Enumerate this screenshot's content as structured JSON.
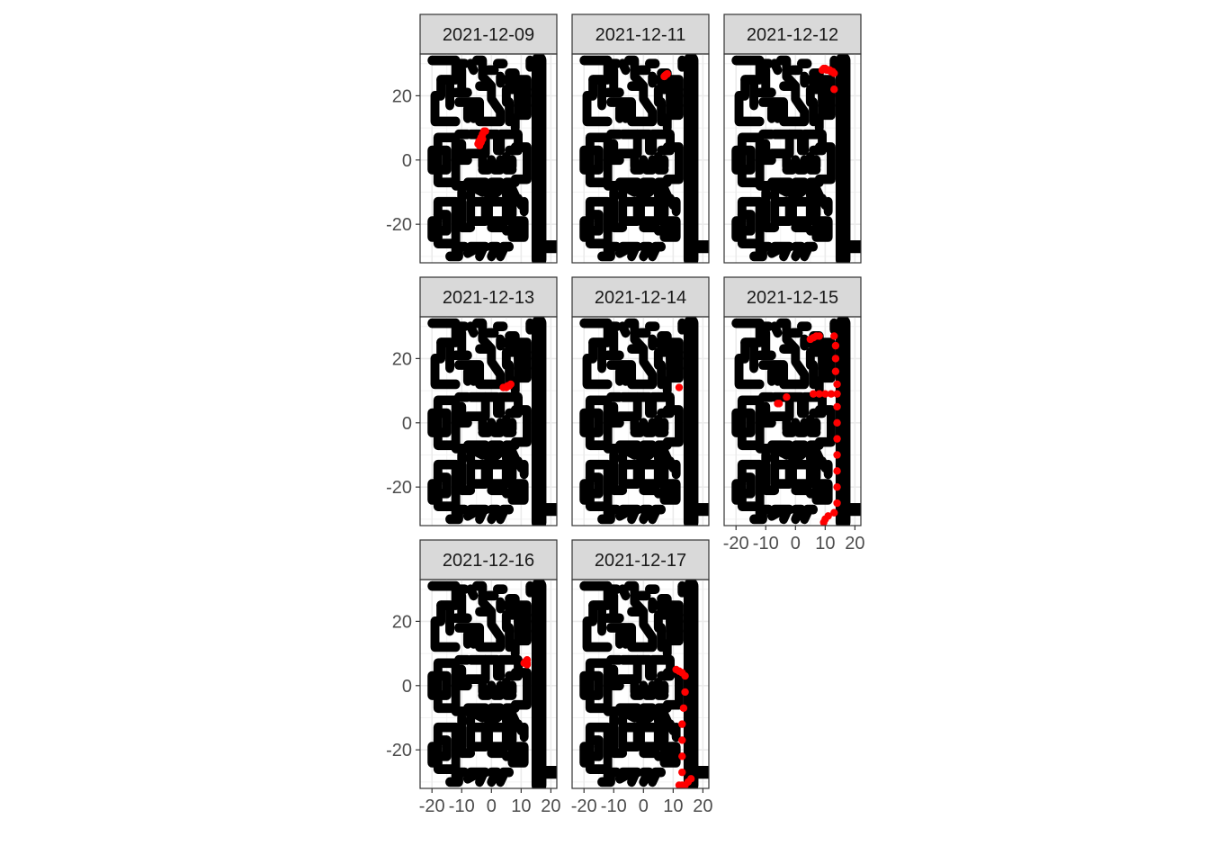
{
  "chart_data": {
    "type": "scatter",
    "title": "",
    "xlabel": "",
    "ylabel": "",
    "xlim": [
      -24,
      22
    ],
    "ylim": [
      -32,
      33
    ],
    "x_ticks": [
      -20,
      -10,
      0,
      10,
      20
    ],
    "x_tick_labels": [
      "-20",
      "-10",
      "0",
      "10",
      "20"
    ],
    "y_ticks": [
      -20,
      0,
      20
    ],
    "y_tick_labels": [
      "-20",
      "0",
      "20"
    ],
    "grid": true,
    "facet_layout": {
      "ncol": 3,
      "nrow": 3
    },
    "series_color": "#ff0000",
    "floorplan_color": "#000000",
    "facets": [
      {
        "label": "2021-12-09",
        "points": [
          [
            -4.5,
            5
          ],
          [
            -4,
            6
          ],
          [
            -3.5,
            5.5
          ],
          [
            -4,
            4.5
          ],
          [
            -3,
            6.5
          ],
          [
            -3,
            8
          ],
          [
            -2.5,
            9
          ],
          [
            -2,
            9
          ],
          [
            -3.5,
            7
          ],
          [
            -4.2,
            5.8
          ]
        ]
      },
      {
        "label": "2021-12-11",
        "points": [
          [
            7,
            26
          ],
          [
            7.5,
            26.5
          ],
          [
            8,
            26.8
          ],
          [
            7.2,
            26.2
          ]
        ]
      },
      {
        "label": "2021-12-12",
        "points": [
          [
            9,
            28
          ],
          [
            9.5,
            28.5
          ],
          [
            10,
            28.5
          ],
          [
            10.5,
            28
          ],
          [
            11,
            28
          ],
          [
            11.5,
            28
          ],
          [
            12,
            27.5
          ],
          [
            12.5,
            27.5
          ],
          [
            13,
            27
          ],
          [
            13,
            22
          ]
        ]
      },
      {
        "label": "2021-12-13",
        "points": [
          [
            4,
            11
          ],
          [
            5,
            11
          ],
          [
            5.5,
            11.5
          ],
          [
            6,
            11.5
          ],
          [
            6.5,
            12
          ],
          [
            5,
            11.2
          ]
        ]
      },
      {
        "label": "2021-12-14",
        "points": [
          [
            12,
            11
          ]
        ]
      },
      {
        "label": "2021-12-15",
        "points": [
          [
            -6,
            6
          ],
          [
            -5.5,
            6
          ],
          [
            -3,
            8
          ],
          [
            5,
            26
          ],
          [
            6,
            26.5
          ],
          [
            7,
            27
          ],
          [
            8,
            27
          ],
          [
            13,
            27
          ],
          [
            13.5,
            24
          ],
          [
            13.5,
            20
          ],
          [
            13.5,
            16
          ],
          [
            14,
            12
          ],
          [
            6,
            9
          ],
          [
            8,
            9
          ],
          [
            10,
            9
          ],
          [
            12,
            9
          ],
          [
            14,
            9
          ],
          [
            14,
            5
          ],
          [
            14,
            0
          ],
          [
            14,
            -5
          ],
          [
            14,
            -10
          ],
          [
            14,
            -15
          ],
          [
            14,
            -20
          ],
          [
            14,
            -25
          ],
          [
            13,
            -28
          ],
          [
            11,
            -29
          ],
          [
            10,
            -30
          ],
          [
            9.5,
            -31
          ]
        ]
      },
      {
        "label": "2021-12-16",
        "points": [
          [
            11,
            7
          ],
          [
            12,
            8
          ],
          [
            12,
            6.5
          ],
          [
            11.5,
            7.5
          ],
          [
            12,
            7
          ]
        ]
      },
      {
        "label": "2021-12-17",
        "points": [
          [
            11,
            5
          ],
          [
            12,
            4.5
          ],
          [
            13,
            4
          ],
          [
            14,
            3
          ],
          [
            14,
            -2
          ],
          [
            13.5,
            -7
          ],
          [
            13,
            -12
          ],
          [
            13,
            -17
          ],
          [
            13,
            -22
          ],
          [
            13,
            -27
          ],
          [
            13,
            -31
          ],
          [
            14,
            -31
          ],
          [
            15,
            -30
          ],
          [
            16,
            -29
          ],
          [
            12,
            -31
          ]
        ]
      }
    ]
  }
}
